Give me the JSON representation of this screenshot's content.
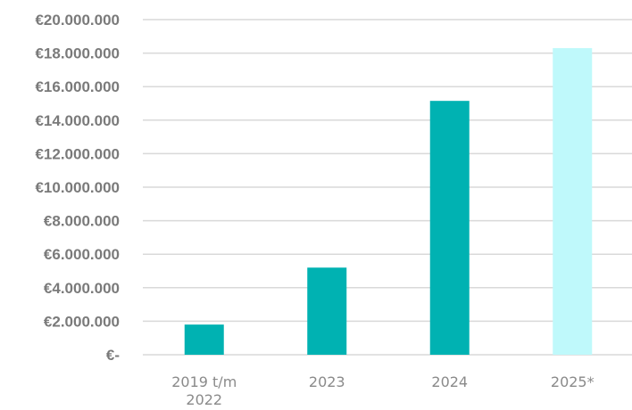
{
  "chart_data": {
    "type": "bar",
    "categories": [
      [
        "2019 t/m",
        "2022"
      ],
      [
        "2023"
      ],
      [
        "2024"
      ],
      [
        "2025*"
      ]
    ],
    "values": [
      1800000,
      5200000,
      15150000,
      18300000
    ],
    "bar_colors": [
      "#00b2b2",
      "#00b2b2",
      "#00b2b2",
      "#bff9fb"
    ],
    "ylim": [
      0,
      20000000
    ],
    "y_ticks": [
      0,
      2000000,
      4000000,
      6000000,
      8000000,
      10000000,
      12000000,
      14000000,
      16000000,
      18000000,
      20000000
    ],
    "y_tick_labels": [
      "€-",
      "€2.000.000",
      "€4.000.000",
      "€6.000.000",
      "€8.000.000",
      "€10.000.000",
      "€12.000.000",
      "€14.000.000",
      "€16.000.000",
      "€18.000.000",
      "€20.000.000"
    ],
    "grid": true,
    "colors": {
      "grid": "#d9d9d9",
      "axis": "#d9d9d9"
    }
  }
}
